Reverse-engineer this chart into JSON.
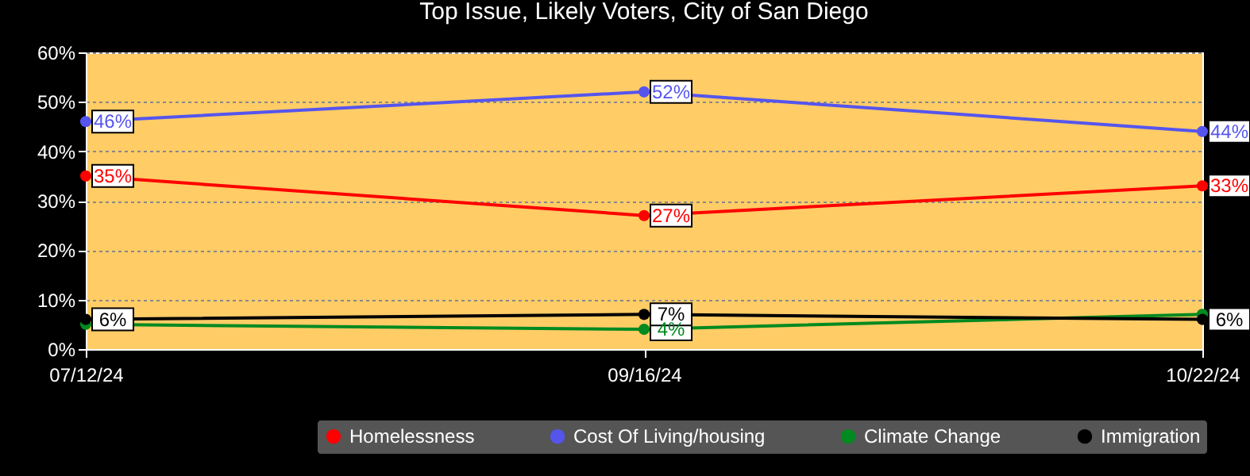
{
  "chart_data": {
    "type": "line",
    "title": "Top Issue, Likely Voters, City of San Diego",
    "categories": [
      "07/12/24",
      "09/16/24",
      "10/22/24"
    ],
    "series": [
      {
        "name": "Homelessness",
        "color": "#ff0000",
        "values": [
          35,
          27,
          33
        ],
        "value_labels": [
          "35%",
          "27%",
          "33%"
        ]
      },
      {
        "name": "Cost Of Living/housing",
        "color": "#5555ee",
        "values": [
          46,
          52,
          44
        ],
        "value_labels": [
          "46%",
          "52%",
          "44%"
        ]
      },
      {
        "name": "Climate Change",
        "color": "#008a20",
        "values": [
          5,
          4,
          7
        ],
        "value_labels": [
          null,
          "4%",
          null
        ]
      },
      {
        "name": "Immigration",
        "color": "#000000",
        "values": [
          6,
          7,
          6
        ],
        "value_labels": [
          "6%",
          "7%",
          "6%"
        ]
      }
    ],
    "ylim": [
      0,
      60
    ],
    "yticks": [
      {
        "value": 0,
        "label": "0%"
      },
      {
        "value": 10,
        "label": "10%"
      },
      {
        "value": 20,
        "label": "20%"
      },
      {
        "value": 30,
        "label": "30%"
      },
      {
        "value": 40,
        "label": "40%"
      },
      {
        "value": 50,
        "label": "50%"
      },
      {
        "value": 60,
        "label": "60%"
      }
    ],
    "grid": "y",
    "legend": "bottom",
    "marker": "circle",
    "line_style": "solid"
  }
}
